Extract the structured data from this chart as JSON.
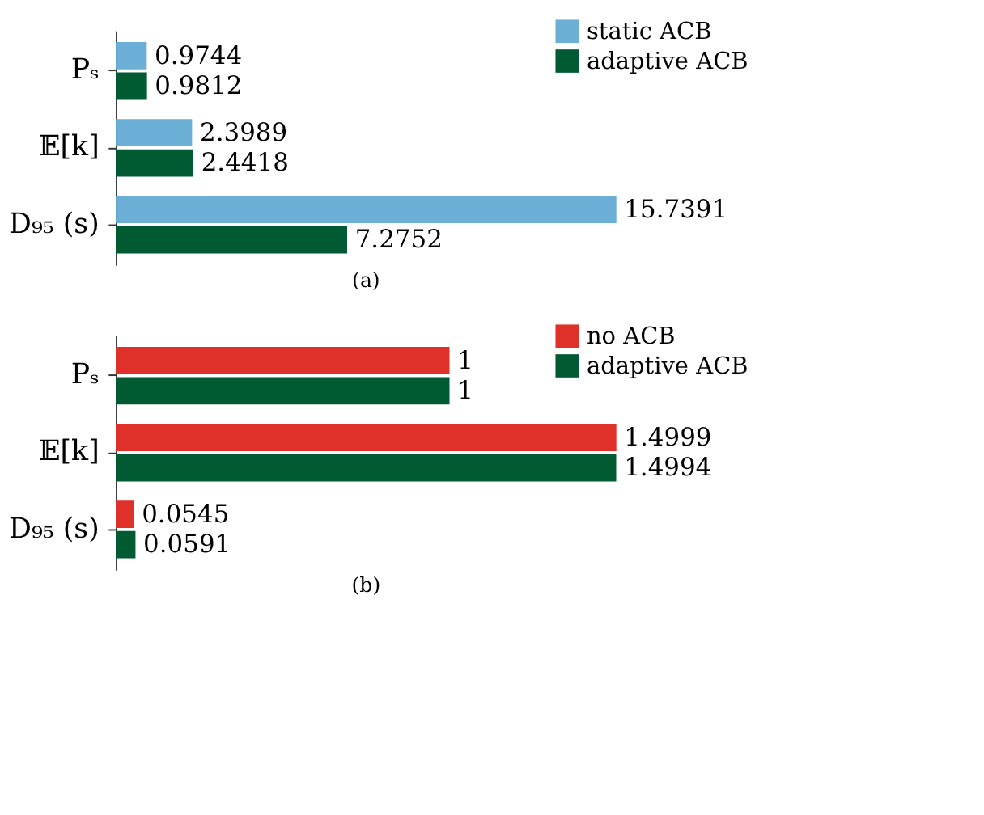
{
  "chart_data": [
    {
      "type": "bar",
      "orientation": "horizontal",
      "title": "(a)",
      "categories": [
        "Pₛ",
        "𝔼[k]",
        "D₉₅ (s)"
      ],
      "data_labels": true,
      "legend": "top right",
      "tick_labels": "y",
      "series": [
        {
          "name": "static ACB",
          "color": "#6baed6",
          "values": [
            0.9744,
            2.3989,
            15.7391
          ]
        },
        {
          "name": "adaptive ACB",
          "color": "#005a32",
          "values": [
            0.9812,
            2.4418,
            7.2752
          ]
        }
      ]
    },
    {
      "type": "bar",
      "orientation": "horizontal",
      "title": "(b)",
      "categories": [
        "Pₛ",
        "𝔼[k]",
        "D₉₅ (s)"
      ],
      "data_labels": true,
      "legend": "top right",
      "tick_labels": "y",
      "series": [
        {
          "name": "no ACB",
          "color": "#e0302a",
          "values": [
            1,
            1.4999,
            0.0545
          ]
        },
        {
          "name": "adaptive ACB",
          "color": "#005a32",
          "values": [
            1,
            1.4994,
            0.0591
          ]
        }
      ]
    }
  ]
}
